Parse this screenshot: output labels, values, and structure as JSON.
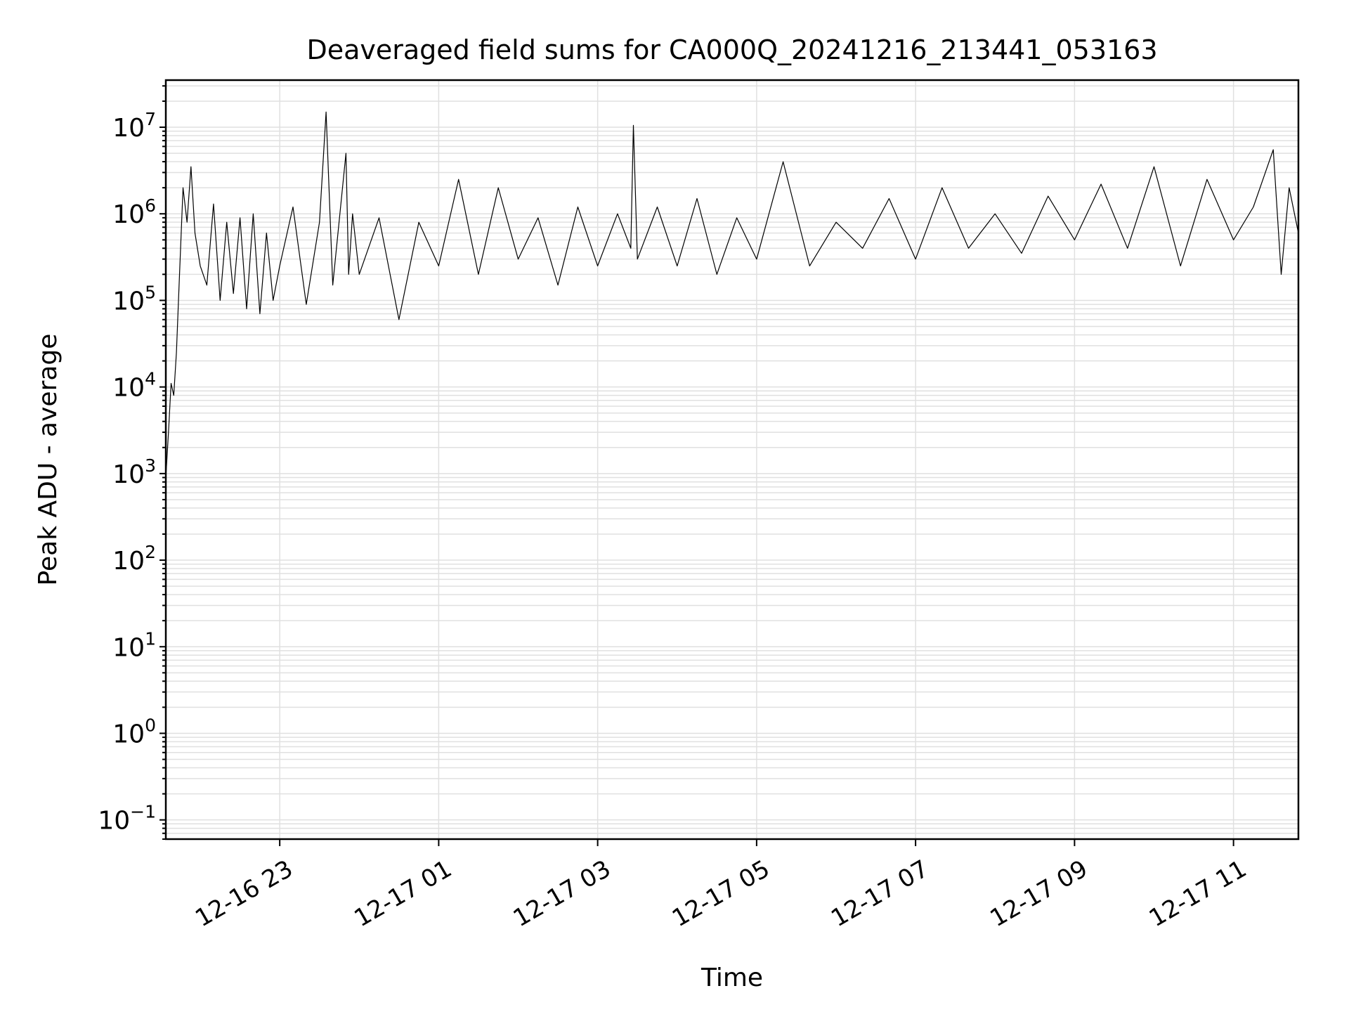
{
  "chart_data": {
    "type": "line",
    "title": "Deaveraged field sums for CA000Q_20241216_213441_053163",
    "xlabel": "Time",
    "ylabel": "Peak ADU - average",
    "xscale": "time",
    "yscale": "log",
    "grid": true,
    "legend": "none",
    "xlim": [
      "2024-12-16 21:34",
      "2024-12-17 11:49"
    ],
    "ylim": [
      0.06,
      35000000
    ],
    "x_tick_values": [
      "2024-12-16 23:00",
      "2024-12-17 01:00",
      "2024-12-17 03:00",
      "2024-12-17 05:00",
      "2024-12-17 07:00",
      "2024-12-17 09:00",
      "2024-12-17 11:00"
    ],
    "x_tick_labels": [
      "12-16 23",
      "12-17 01",
      "12-17 03",
      "12-17 05",
      "12-17 07",
      "12-17 09",
      "12-17 11"
    ],
    "y_ticks": [
      {
        "value": 0.1,
        "base": "10",
        "exp": "−1"
      },
      {
        "value": 1,
        "base": "10",
        "exp": "0"
      },
      {
        "value": 10,
        "base": "10",
        "exp": "1"
      },
      {
        "value": 100,
        "base": "10",
        "exp": "2"
      },
      {
        "value": 1000,
        "base": "10",
        "exp": "3"
      },
      {
        "value": 10000,
        "base": "10",
        "exp": "4"
      },
      {
        "value": 100000,
        "base": "10",
        "exp": "5"
      },
      {
        "value": 1000000,
        "base": "10",
        "exp": "6"
      },
      {
        "value": 10000000,
        "base": "10",
        "exp": "7"
      }
    ],
    "series": [
      {
        "color": "#000000",
        "x": [
          "2024-12-16 21:34",
          "2024-12-16 21:36",
          "2024-12-16 21:38",
          "2024-12-16 21:40",
          "2024-12-16 21:42",
          "2024-12-16 21:44",
          "2024-12-16 21:47",
          "2024-12-16 21:50",
          "2024-12-16 21:53",
          "2024-12-16 21:56",
          "2024-12-16 22:00",
          "2024-12-16 22:05",
          "2024-12-16 22:10",
          "2024-12-16 22:15",
          "2024-12-16 22:20",
          "2024-12-16 22:25",
          "2024-12-16 22:30",
          "2024-12-16 22:35",
          "2024-12-16 22:40",
          "2024-12-16 22:45",
          "2024-12-16 22:50",
          "2024-12-16 22:55",
          "2024-12-16 23:00",
          "2024-12-16 23:10",
          "2024-12-16 23:20",
          "2024-12-16 23:30",
          "2024-12-16 23:35",
          "2024-12-16 23:40",
          "2024-12-16 23:50",
          "2024-12-16 23:52",
          "2024-12-16 23:55",
          "2024-12-17 00:00",
          "2024-12-17 00:15",
          "2024-12-17 00:30",
          "2024-12-17 00:45",
          "2024-12-17 01:00",
          "2024-12-17 01:15",
          "2024-12-17 01:30",
          "2024-12-17 01:45",
          "2024-12-17 02:00",
          "2024-12-17 02:15",
          "2024-12-17 02:30",
          "2024-12-17 02:45",
          "2024-12-17 03:00",
          "2024-12-17 03:15",
          "2024-12-17 03:25",
          "2024-12-17 03:27",
          "2024-12-17 03:30",
          "2024-12-17 03:45",
          "2024-12-17 04:00",
          "2024-12-17 04:15",
          "2024-12-17 04:30",
          "2024-12-17 04:45",
          "2024-12-17 05:00",
          "2024-12-17 05:20",
          "2024-12-17 05:40",
          "2024-12-17 06:00",
          "2024-12-17 06:20",
          "2024-12-17 06:40",
          "2024-12-17 07:00",
          "2024-12-17 07:20",
          "2024-12-17 07:40",
          "2024-12-17 08:00",
          "2024-12-17 08:20",
          "2024-12-17 08:40",
          "2024-12-17 09:00",
          "2024-12-17 09:20",
          "2024-12-17 09:40",
          "2024-12-17 10:00",
          "2024-12-17 10:20",
          "2024-12-17 10:40",
          "2024-12-17 11:00",
          "2024-12-17 11:15",
          "2024-12-17 11:30",
          "2024-12-17 11:36",
          "2024-12-17 11:42",
          "2024-12-17 11:49"
        ],
        "values": [
          900,
          3000,
          11000,
          8000,
          25000,
          150000,
          2000000,
          800000,
          3500000,
          600000,
          250000,
          150000,
          1300000,
          100000,
          800000,
          120000,
          900000,
          80000,
          1000000,
          70000,
          600000,
          100000,
          250000,
          1200000,
          90000,
          800000,
          15000000,
          150000,
          5000000,
          200000,
          1000000,
          200000,
          900000,
          60000,
          800000,
          250000,
          2500000,
          200000,
          2000000,
          300000,
          900000,
          150000,
          1200000,
          250000,
          1000000,
          400000,
          10500000,
          300000,
          1200000,
          250000,
          1500000,
          200000,
          900000,
          300000,
          4000000,
          250000,
          800000,
          400000,
          1500000,
          300000,
          2000000,
          400000,
          1000000,
          350000,
          1600000,
          500000,
          2200000,
          400000,
          3500000,
          250000,
          2500000,
          500000,
          1200000,
          5500000,
          200000,
          2000000,
          600000
        ]
      }
    ]
  }
}
